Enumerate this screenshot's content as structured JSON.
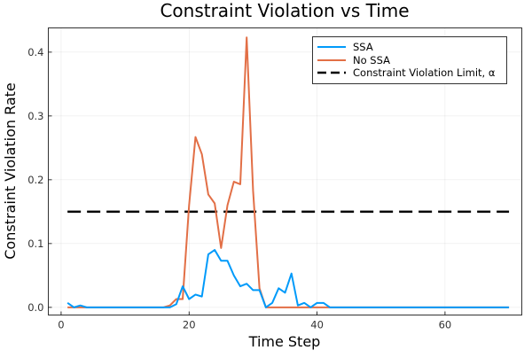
{
  "chart_data": {
    "type": "line",
    "title": "Constraint Violation vs Time",
    "xlabel": "Time Step",
    "ylabel": "Constraint Violation Rate",
    "xlim": [
      -2,
      72
    ],
    "ylim": [
      -0.012,
      0.438
    ],
    "xticks": [
      0,
      20,
      40,
      60
    ],
    "xtick_labels": [
      "0",
      "20",
      "40",
      "60"
    ],
    "yticks": [
      0.0,
      0.1,
      0.2,
      0.3,
      0.4
    ],
    "ytick_labels": [
      "0.0",
      "0.1",
      "0.2",
      "0.3",
      "0.4"
    ],
    "grid": true,
    "legend_position": "top-right",
    "x": [
      1,
      2,
      3,
      4,
      5,
      6,
      7,
      8,
      9,
      10,
      11,
      12,
      13,
      14,
      15,
      16,
      17,
      18,
      19,
      20,
      21,
      22,
      23,
      24,
      25,
      26,
      27,
      28,
      29,
      30,
      31,
      32,
      33,
      34,
      35,
      36,
      37,
      38,
      39,
      40,
      41,
      42,
      43,
      44,
      45,
      46,
      47,
      48,
      49,
      50,
      51,
      52,
      53,
      54,
      55,
      56,
      57,
      58,
      59,
      60,
      61,
      62,
      63,
      64,
      65,
      66,
      67,
      68,
      69,
      70
    ],
    "series": [
      {
        "name": "SSA",
        "color": "#009AFA",
        "style": "solid",
        "values": [
          0.007,
          0.0,
          0.003,
          0.0,
          0.0,
          0.0,
          0.0,
          0.0,
          0.0,
          0.0,
          0.0,
          0.0,
          0.0,
          0.0,
          0.0,
          0.0,
          0.0,
          0.005,
          0.033,
          0.013,
          0.02,
          0.017,
          0.083,
          0.09,
          0.073,
          0.073,
          0.05,
          0.033,
          0.037,
          0.027,
          0.027,
          0.0,
          0.007,
          0.03,
          0.023,
          0.053,
          0.003,
          0.007,
          0.0,
          0.007,
          0.007,
          0.0,
          0.0,
          0.0,
          0.0,
          0.0,
          0.0,
          0.0,
          0.0,
          0.0,
          0.0,
          0.0,
          0.0,
          0.0,
          0.0,
          0.0,
          0.0,
          0.0,
          0.0,
          0.0,
          0.0,
          0.0,
          0.0,
          0.0,
          0.0,
          0.0,
          0.0,
          0.0,
          0.0,
          0.0
        ]
      },
      {
        "name": "No SSA",
        "color": "#E26F46",
        "style": "solid",
        "values": [
          0.0,
          0.0,
          0.0,
          0.0,
          0.0,
          0.0,
          0.0,
          0.0,
          0.0,
          0.0,
          0.0,
          0.0,
          0.0,
          0.0,
          0.0,
          0.0,
          0.003,
          0.013,
          0.013,
          0.16,
          0.267,
          0.24,
          0.177,
          0.163,
          0.093,
          0.16,
          0.197,
          0.193,
          0.423,
          0.183,
          0.03,
          0.0,
          0.0,
          0.0,
          0.0,
          0.0,
          0.0,
          0.0,
          0.0,
          0.0,
          0.0,
          0.0,
          0.0,
          0.0,
          0.0,
          0.0,
          0.0,
          0.0,
          0.0,
          0.0,
          0.0,
          0.0,
          0.0,
          0.0,
          0.0,
          0.0,
          0.0,
          0.0,
          0.0,
          0.0,
          0.0,
          0.0,
          0.0,
          0.0,
          0.0,
          0.0,
          0.0,
          0.0,
          0.0,
          0.0
        ]
      },
      {
        "name": "Constraint Violation Limit, α",
        "color": "#000000",
        "style": "dashed",
        "x": [
          1,
          70
        ],
        "values": [
          0.15,
          0.15
        ]
      }
    ]
  }
}
